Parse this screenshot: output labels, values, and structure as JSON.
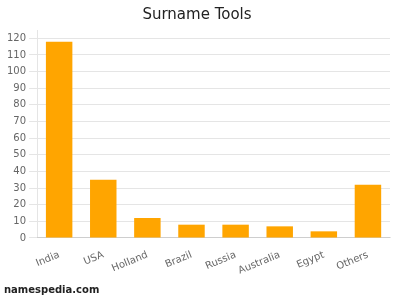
{
  "chart_data": {
    "type": "bar",
    "title": "Surname Tools",
    "categories": [
      "India",
      "USA",
      "Holland",
      "Brazil",
      "Russia",
      "Australia",
      "Egypt",
      "Others"
    ],
    "values": [
      118,
      35,
      12,
      8,
      8,
      7,
      4,
      32
    ],
    "color": "#FFA500",
    "ylim": [
      0,
      125
    ],
    "yticks": [
      0,
      10,
      20,
      30,
      40,
      50,
      60,
      70,
      80,
      90,
      100,
      110,
      120
    ],
    "grid": true,
    "annotations": [
      "namespedia.com"
    ]
  }
}
